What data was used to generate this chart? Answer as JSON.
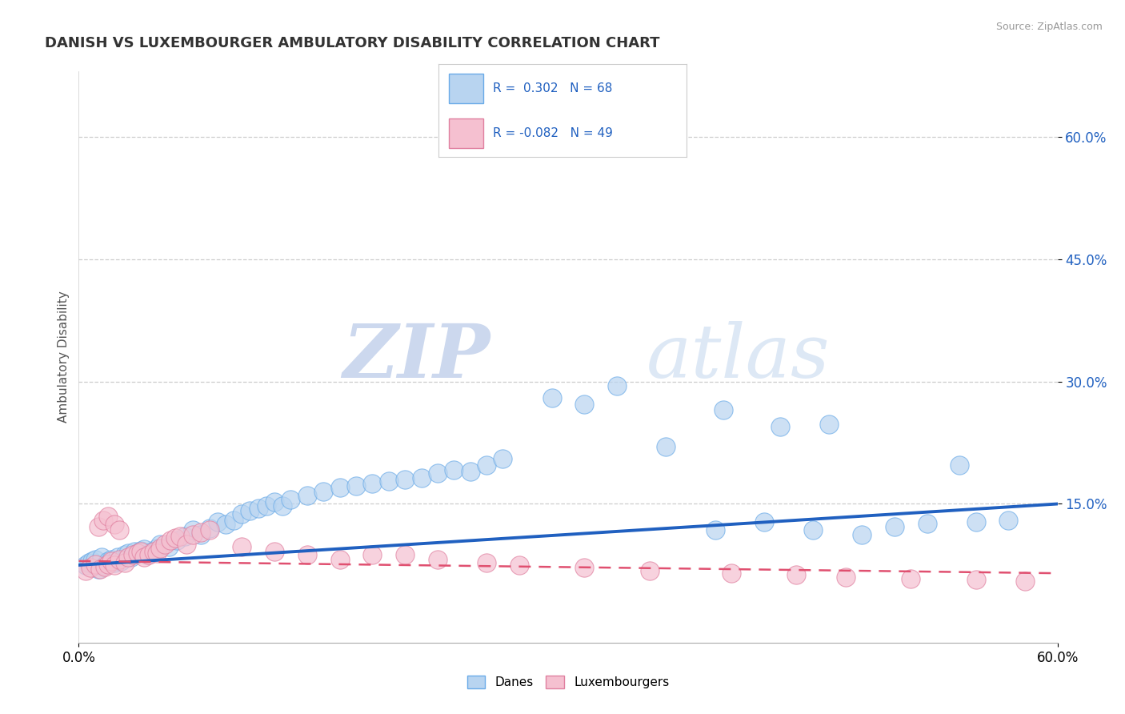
{
  "title": "DANISH VS LUXEMBOURGER AMBULATORY DISABILITY CORRELATION CHART",
  "source": "Source: ZipAtlas.com",
  "ylabel": "Ambulatory Disability",
  "xmin": 0.0,
  "xmax": 0.6,
  "ymin": -0.02,
  "ymax": 0.68,
  "yticks": [
    0.15,
    0.3,
    0.45,
    0.6
  ],
  "ytick_labels": [
    "15.0%",
    "30.0%",
    "45.0%",
    "60.0%"
  ],
  "xticks": [
    0.0,
    0.6
  ],
  "xtick_labels": [
    "0.0%",
    "60.0%"
  ],
  "danes_R": 0.302,
  "danes_N": 68,
  "lux_R": -0.082,
  "lux_N": 49,
  "danes_color": "#b8d4f0",
  "danes_edge_color": "#6aabe8",
  "danes_line_color": "#2060c0",
  "lux_color": "#f5c0d0",
  "lux_edge_color": "#e080a0",
  "lux_line_color": "#e05070",
  "background_color": "#ffffff",
  "grid_color": "#c8c8c8",
  "watermark_color": "#dde8f5",
  "danes_line_start_y": 0.075,
  "danes_line_end_y": 0.15,
  "lux_line_start_y": 0.08,
  "lux_line_end_y": 0.065,
  "danes_x": [
    0.004,
    0.006,
    0.008,
    0.01,
    0.012,
    0.014,
    0.016,
    0.018,
    0.02,
    0.022,
    0.024,
    0.026,
    0.028,
    0.03,
    0.032,
    0.034,
    0.036,
    0.038,
    0.04,
    0.042,
    0.045,
    0.048,
    0.05,
    0.055,
    0.06,
    0.065,
    0.07,
    0.075,
    0.08,
    0.085,
    0.09,
    0.095,
    0.1,
    0.105,
    0.11,
    0.115,
    0.12,
    0.125,
    0.13,
    0.14,
    0.15,
    0.16,
    0.17,
    0.18,
    0.19,
    0.2,
    0.21,
    0.22,
    0.23,
    0.24,
    0.25,
    0.26,
    0.29,
    0.31,
    0.33,
    0.36,
    0.39,
    0.42,
    0.45,
    0.48,
    0.5,
    0.52,
    0.55,
    0.57,
    0.395,
    0.43,
    0.46,
    0.54
  ],
  "danes_y": [
    0.075,
    0.078,
    0.08,
    0.082,
    0.07,
    0.085,
    0.075,
    0.08,
    0.082,
    0.078,
    0.085,
    0.08,
    0.088,
    0.09,
    0.085,
    0.092,
    0.09,
    0.093,
    0.095,
    0.088,
    0.092,
    0.096,
    0.1,
    0.098,
    0.105,
    0.11,
    0.118,
    0.112,
    0.12,
    0.128,
    0.125,
    0.13,
    0.138,
    0.142,
    0.145,
    0.148,
    0.152,
    0.148,
    0.155,
    0.16,
    0.165,
    0.17,
    0.172,
    0.175,
    0.178,
    0.18,
    0.182,
    0.188,
    0.192,
    0.19,
    0.198,
    0.205,
    0.28,
    0.272,
    0.295,
    0.22,
    0.118,
    0.128,
    0.118,
    0.112,
    0.122,
    0.126,
    0.128,
    0.13,
    0.265,
    0.245,
    0.248,
    0.198
  ],
  "lux_x": [
    0.004,
    0.007,
    0.01,
    0.013,
    0.016,
    0.018,
    0.02,
    0.022,
    0.025,
    0.028,
    0.03,
    0.033,
    0.036,
    0.038,
    0.04,
    0.043,
    0.046,
    0.048,
    0.05,
    0.053,
    0.056,
    0.059,
    0.062,
    0.066,
    0.07,
    0.075,
    0.08,
    0.1,
    0.12,
    0.14,
    0.16,
    0.18,
    0.2,
    0.22,
    0.25,
    0.27,
    0.31,
    0.35,
    0.4,
    0.44,
    0.47,
    0.51,
    0.55,
    0.58,
    0.012,
    0.015,
    0.018,
    0.022,
    0.025
  ],
  "lux_y": [
    0.068,
    0.072,
    0.076,
    0.07,
    0.073,
    0.076,
    0.08,
    0.075,
    0.082,
    0.078,
    0.085,
    0.088,
    0.09,
    0.092,
    0.085,
    0.088,
    0.092,
    0.09,
    0.096,
    0.1,
    0.105,
    0.108,
    0.11,
    0.1,
    0.112,
    0.115,
    0.118,
    0.098,
    0.092,
    0.088,
    0.082,
    0.088,
    0.088,
    0.082,
    0.078,
    0.075,
    0.072,
    0.068,
    0.065,
    0.063,
    0.06,
    0.058,
    0.057,
    0.055,
    0.122,
    0.13,
    0.135,
    0.125,
    0.118
  ]
}
